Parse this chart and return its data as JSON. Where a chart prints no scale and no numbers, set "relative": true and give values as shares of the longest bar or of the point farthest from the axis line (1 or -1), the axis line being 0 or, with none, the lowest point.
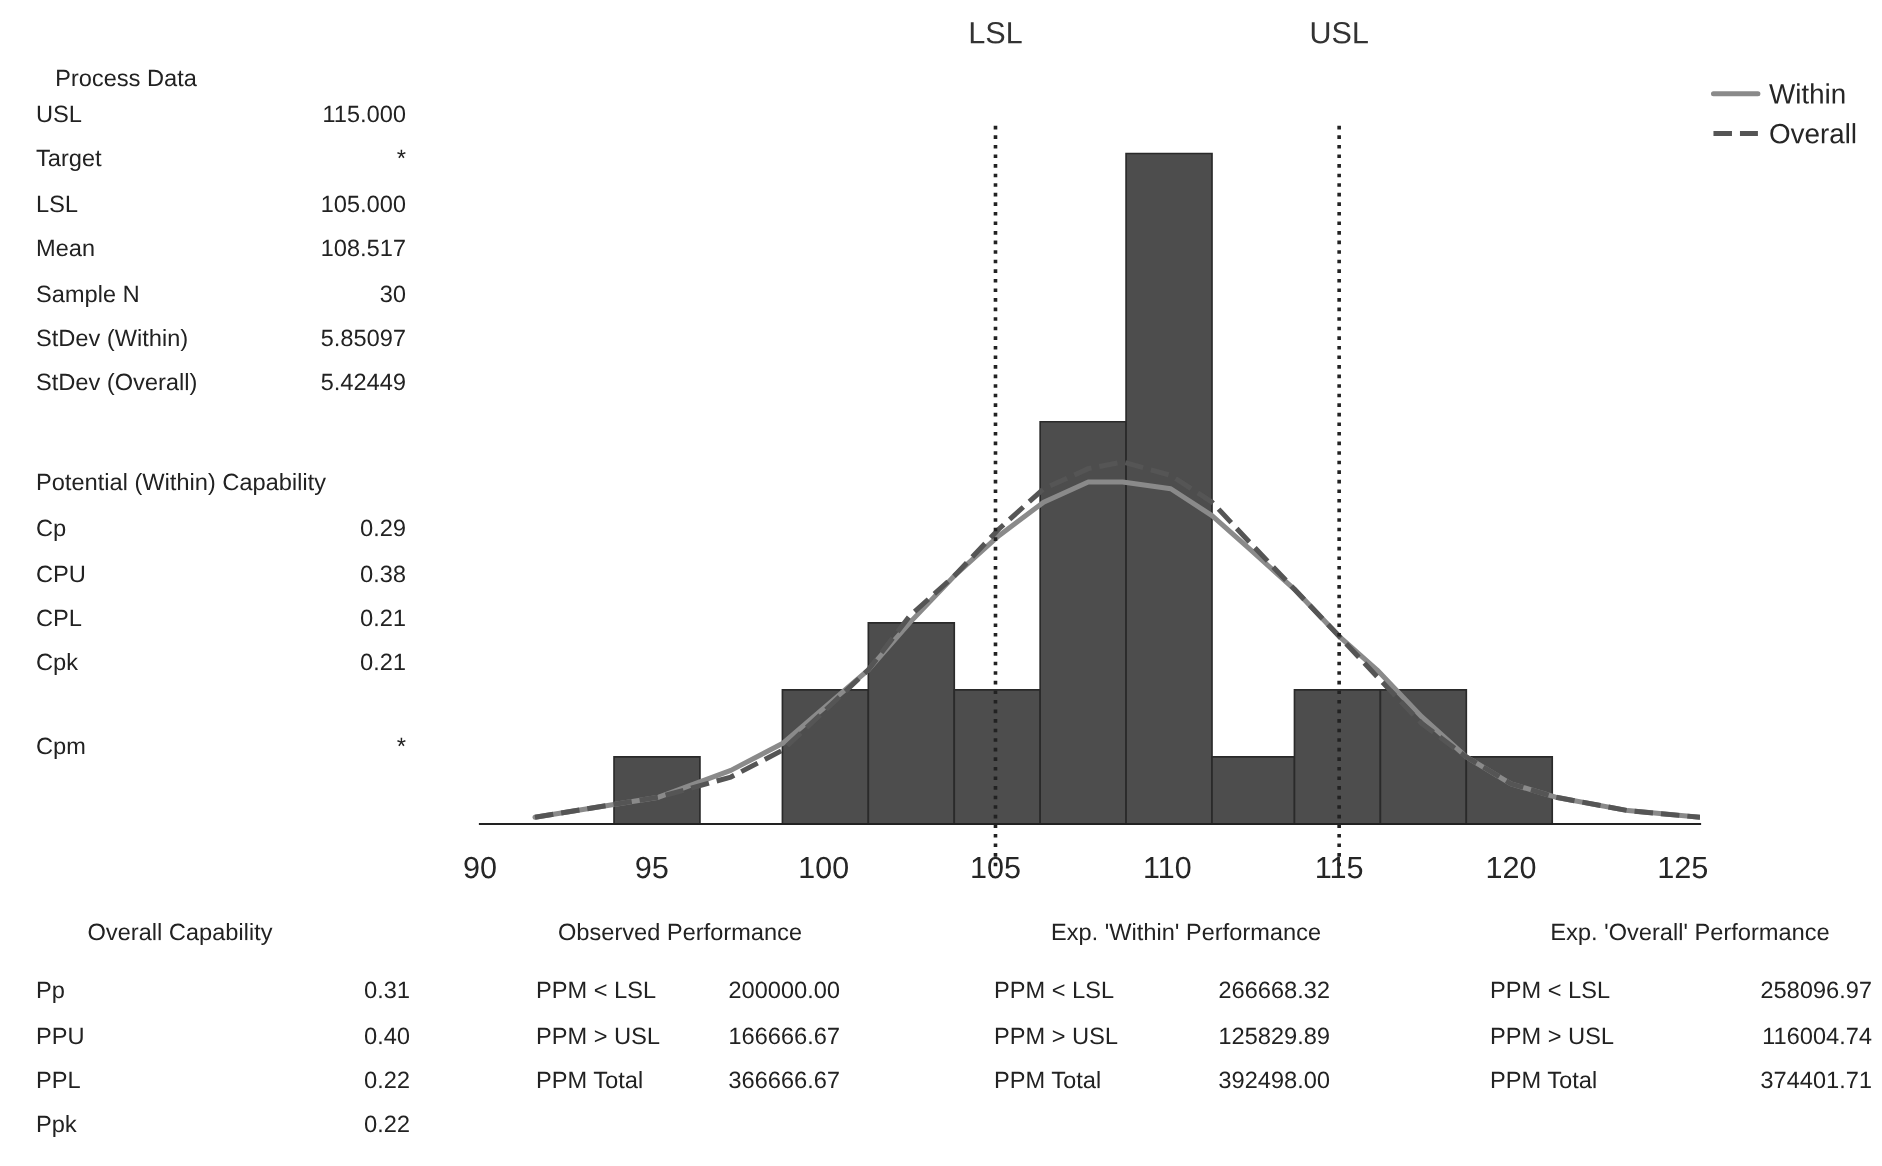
{
  "chart_data": {
    "type": "histogram",
    "relative": true,
    "color": "#4d4d4d",
    "bins": [
      93.9,
      96.4,
      98.8,
      101.3,
      103.8,
      106.3,
      108.8,
      111.3,
      113.7,
      116.2,
      118.7,
      121.2
    ],
    "values": [
      0.1,
      0,
      0.2,
      0.3,
      0.2,
      0.6,
      1,
      0.1,
      0.2,
      0.2,
      0.1
    ],
    "xlim": [
      90,
      125.5
    ],
    "xticks": [
      90,
      95,
      100,
      105,
      110,
      115,
      120,
      125
    ],
    "series": [
      {
        "name": "Within",
        "type": "line",
        "color": "#8a8a8a",
        "line_style": "solid",
        "x": [
          91.6,
          95.2,
          97.3,
          98.8,
          101.3,
          102.5,
          103.8,
          105.1,
          106.4,
          107.7,
          108.7,
          110.1,
          111.3,
          112.4,
          113.7,
          115.0,
          116.1,
          117.4,
          118.7,
          120.0,
          121.3,
          123.4,
          125.5
        ],
        "values": [
          0.01,
          0.04,
          0.08,
          0.12,
          0.23,
          0.3,
          0.37,
          0.43,
          0.48,
          0.51,
          0.51,
          0.5,
          0.46,
          0.41,
          0.35,
          0.28,
          0.23,
          0.16,
          0.1,
          0.06,
          0.04,
          0.02,
          0.01
        ]
      },
      {
        "name": "Overall",
        "type": "line",
        "color": "#555555",
        "line_style": "dashed",
        "x": [
          91.6,
          95.2,
          97.3,
          98.8,
          101.3,
          102.5,
          103.8,
          105.1,
          106.4,
          107.7,
          108.7,
          110.1,
          111.3,
          112.4,
          113.7,
          115.0,
          116.1,
          117.4,
          118.7,
          120.0,
          121.3,
          123.4,
          125.5
        ],
        "values": [
          0.01,
          0.04,
          0.07,
          0.11,
          0.23,
          0.31,
          0.37,
          0.44,
          0.5,
          0.53,
          0.54,
          0.52,
          0.48,
          0.42,
          0.35,
          0.28,
          0.22,
          0.15,
          0.1,
          0.06,
          0.04,
          0.02,
          0.01
        ]
      }
    ],
    "ref_lines": [
      {
        "axis": "x",
        "value": 105,
        "label": "LSL",
        "color": "#222222",
        "line_style": "dotted"
      },
      {
        "axis": "x",
        "value": 115,
        "label": "USL",
        "color": "#222222",
        "line_style": "dotted"
      }
    ],
    "legend": "top right",
    "grid": false,
    "annotations": [
      "Process Data",
      "USL",
      "115.000",
      "Target",
      "*",
      "LSL",
      "105.000",
      "Mean",
      "108.517",
      "Sample N",
      "30",
      "StDev (Within)",
      "5.85097",
      "StDev (Overall)",
      "5.42449",
      "Potential (Within) Capability",
      "Cp",
      "0.29",
      "CPU",
      "0.38",
      "CPL",
      "0.21",
      "Cpk",
      "0.21",
      "Cpm",
      "*",
      "Overall Capability",
      "Pp",
      "0.31",
      "PPU",
      "0.40",
      "PPL",
      "0.22",
      "Ppk",
      "0.22",
      "Observed Performance",
      "PPM < LSL",
      "200000.00",
      "PPM > USL",
      "166666.67",
      "PPM Total",
      "366666.67",
      "Exp. 'Within' Performance",
      "PPM < LSL",
      "266668.32",
      "PPM > USL",
      "125829.89",
      "PPM Total",
      "392498.00",
      "Exp. 'Overall' Performance",
      "PPM < LSL",
      "258096.97",
      "PPM > USL",
      "116004.74",
      "PPM Total",
      "374401.71"
    ]
  }
}
